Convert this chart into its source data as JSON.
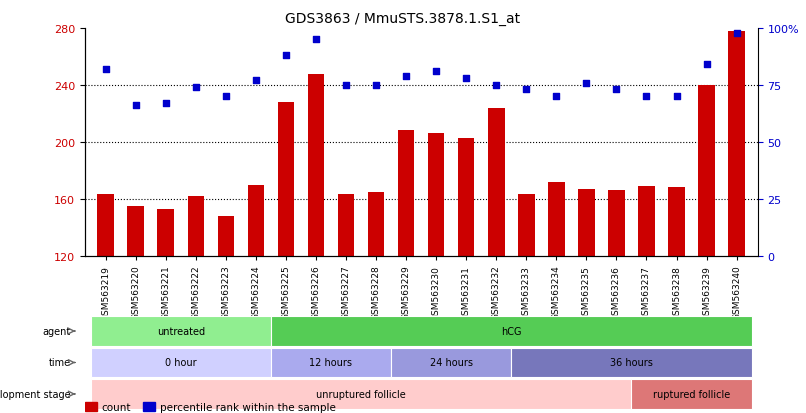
{
  "title": "GDS3863 / MmuSTS.3878.1.S1_at",
  "categories": [
    "GSM563219",
    "GSM563220",
    "GSM563221",
    "GSM563222",
    "GSM563223",
    "GSM563224",
    "GSM563225",
    "GSM563226",
    "GSM563227",
    "GSM563228",
    "GSM563229",
    "GSM563230",
    "GSM563231",
    "GSM563232",
    "GSM563233",
    "GSM563234",
    "GSM563235",
    "GSM563236",
    "GSM563237",
    "GSM563238",
    "GSM563239",
    "GSM563240"
  ],
  "count_values": [
    163,
    155,
    153,
    162,
    148,
    170,
    228,
    248,
    163,
    165,
    208,
    206,
    203,
    224,
    163,
    172,
    167,
    166,
    169,
    168,
    240,
    278
  ],
  "percentile_values": [
    82,
    66,
    67,
    74,
    70,
    77,
    88,
    95,
    75,
    75,
    79,
    81,
    78,
    75,
    73,
    70,
    76,
    73,
    70,
    70,
    84,
    98
  ],
  "ylim_left": [
    120,
    280
  ],
  "ylim_right": [
    0,
    100
  ],
  "yticks_left": [
    120,
    160,
    200,
    240,
    280
  ],
  "yticks_right": [
    0,
    25,
    50,
    75,
    100
  ],
  "bar_color": "#cc0000",
  "dot_color": "#0000cc",
  "grid_values": [
    160,
    200,
    240
  ],
  "agent_groups": [
    {
      "label": "untreated",
      "start": 0,
      "end": 6,
      "color": "#90ee90"
    },
    {
      "label": "hCG",
      "start": 6,
      "end": 22,
      "color": "#55cc55"
    }
  ],
  "time_groups": [
    {
      "label": "0 hour",
      "start": 0,
      "end": 6,
      "color": "#d0d0ff"
    },
    {
      "label": "12 hours",
      "start": 6,
      "end": 10,
      "color": "#aaaaee"
    },
    {
      "label": "24 hours",
      "start": 10,
      "end": 14,
      "color": "#9999dd"
    },
    {
      "label": "36 hours",
      "start": 14,
      "end": 22,
      "color": "#7777bb"
    }
  ],
  "dev_groups": [
    {
      "label": "unruptured follicle",
      "start": 0,
      "end": 18,
      "color": "#ffcccc"
    },
    {
      "label": "ruptured follicle",
      "start": 18,
      "end": 22,
      "color": "#dd7777"
    }
  ],
  "row_labels": [
    "agent",
    "time",
    "development stage"
  ],
  "legend_count_label": "count",
  "legend_pct_label": "percentile rank within the sample"
}
